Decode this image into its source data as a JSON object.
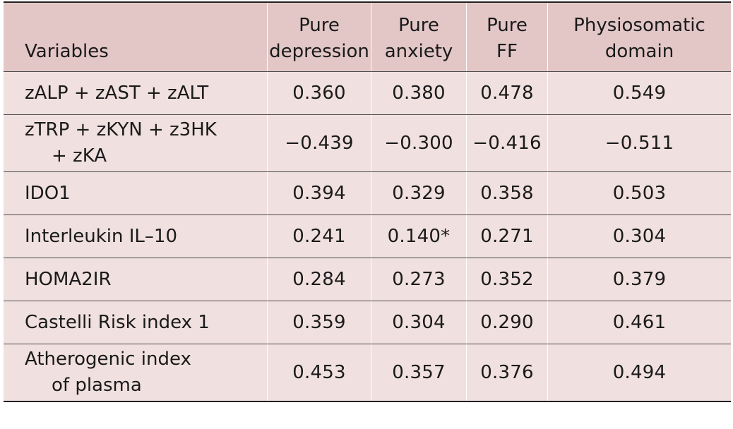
{
  "table": {
    "headers": [
      "Variables",
      "Pure\ndepression",
      "Pure\nanxiety",
      "Pure\nFF",
      "Physiosomatic\ndomain"
    ],
    "rows": [
      {
        "var_line1": "zALP + zAST + zALT",
        "var_line2": "",
        "values": [
          "0.360",
          "0.380",
          "0.478",
          "0.549"
        ]
      },
      {
        "var_line1": "zTRP + zKYN + z3HK",
        "var_line2": "+ zKA",
        "values": [
          "−0.439",
          "−0.300",
          "−0.416",
          "−0.511"
        ]
      },
      {
        "var_line1": "IDO1",
        "var_line2": "",
        "values": [
          "0.394",
          "0.329",
          "0.358",
          "0.503"
        ]
      },
      {
        "var_line1": "Interleukin IL–10",
        "var_line2": "",
        "values": [
          "0.241",
          "0.140*",
          "0.271",
          "0.304"
        ]
      },
      {
        "var_line1": "HOMA2IR",
        "var_line2": "",
        "values": [
          "0.284",
          "0.273",
          "0.352",
          "0.379"
        ]
      },
      {
        "var_line1": "Castelli Risk index 1",
        "var_line2": "",
        "values": [
          "0.359",
          "0.304",
          "0.290",
          "0.461"
        ]
      },
      {
        "var_line1": "Atherogenic index",
        "var_line2": "of plasma",
        "values": [
          "0.453",
          "0.357",
          "0.376",
          "0.494"
        ]
      }
    ]
  }
}
